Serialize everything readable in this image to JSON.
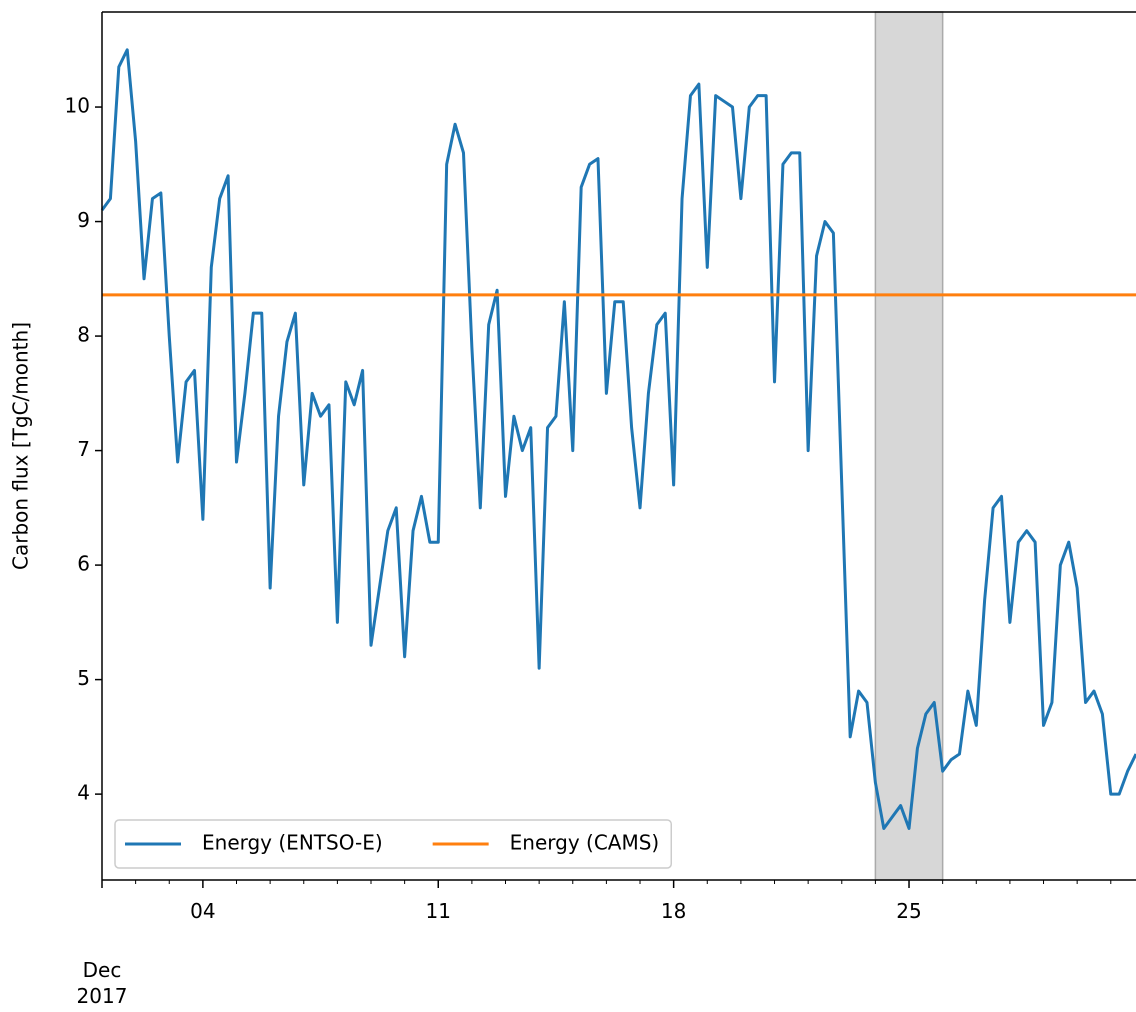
{
  "chart_data": {
    "type": "line",
    "ylabel": "Carbon flux [TgC/month]",
    "xlim": [
      1,
      31.75
    ],
    "ylim": [
      3.25,
      10.83
    ],
    "yticks": [
      4,
      5,
      6,
      7,
      8,
      9,
      10
    ],
    "xticks": [
      {
        "value": 1,
        "label": "Dec\n2017"
      },
      {
        "value": 4,
        "label": "04"
      },
      {
        "value": 11,
        "label": "11"
      },
      {
        "value": 18,
        "label": "18"
      },
      {
        "value": 25,
        "label": "25"
      }
    ],
    "xminorticks": [
      2,
      3,
      5,
      6,
      7,
      8,
      9,
      10,
      12,
      13,
      14,
      15,
      16,
      17,
      19,
      20,
      21,
      22,
      23,
      24,
      26,
      27,
      28,
      29,
      30,
      31
    ],
    "legend": "lower left",
    "spans": [
      {
        "start": 24,
        "end": 26,
        "color": "#d3d3d3"
      }
    ],
    "x": [
      1,
      1.25,
      1.5,
      1.75,
      2,
      2.25,
      2.5,
      2.75,
      3,
      3.25,
      3.5,
      3.75,
      4,
      4.25,
      4.5,
      4.75,
      5,
      5.25,
      5.5,
      5.75,
      6,
      6.25,
      6.5,
      6.75,
      7,
      7.25,
      7.5,
      7.75,
      8,
      8.25,
      8.5,
      8.75,
      9,
      9.25,
      9.5,
      9.75,
      10,
      10.25,
      10.5,
      10.75,
      11,
      11.25,
      11.5,
      11.75,
      12,
      12.25,
      12.5,
      12.75,
      13,
      13.25,
      13.5,
      13.75,
      14,
      14.25,
      14.5,
      14.75,
      15,
      15.25,
      15.5,
      15.75,
      16,
      16.25,
      16.5,
      16.75,
      17,
      17.25,
      17.5,
      17.75,
      18,
      18.25,
      18.5,
      18.75,
      19,
      19.25,
      19.5,
      19.75,
      20,
      20.25,
      20.5,
      20.75,
      21,
      21.25,
      21.5,
      21.75,
      22,
      22.25,
      22.5,
      22.75,
      23,
      23.25,
      23.5,
      23.75,
      24,
      24.25,
      24.5,
      24.75,
      25,
      25.25,
      25.5,
      25.75,
      26,
      26.25,
      26.5,
      26.75,
      27,
      27.25,
      27.5,
      27.75,
      28,
      28.25,
      28.5,
      28.75,
      29,
      29.25,
      29.5,
      29.75,
      30,
      30.25,
      30.5,
      30.75,
      31,
      31.25,
      31.5,
      31.75
    ],
    "series": [
      {
        "name": "Energy (ENTSO-E)",
        "color": "#1f77b4",
        "values": [
          9.1,
          9.2,
          10.35,
          10.5,
          9.7,
          8.5,
          9.2,
          9.25,
          8.0,
          6.9,
          7.6,
          7.7,
          6.4,
          8.6,
          9.2,
          9.4,
          6.9,
          7.5,
          8.2,
          8.2,
          5.8,
          7.3,
          7.95,
          8.2,
          6.7,
          7.5,
          7.3,
          7.4,
          5.5,
          7.6,
          7.4,
          7.7,
          5.3,
          5.8,
          6.3,
          6.5,
          5.2,
          6.3,
          6.6,
          6.2,
          6.2,
          9.5,
          9.85,
          9.6,
          7.9,
          6.5,
          8.1,
          8.4,
          6.6,
          7.3,
          7.0,
          7.2,
          5.1,
          7.2,
          7.3,
          8.3,
          7.0,
          9.3,
          9.5,
          9.55,
          7.5,
          8.3,
          8.3,
          7.2,
          6.5,
          7.5,
          8.1,
          8.2,
          6.7,
          9.2,
          10.1,
          10.2,
          8.6,
          10.1,
          10.05,
          10.0,
          9.2,
          10.0,
          10.1,
          10.1,
          7.6,
          9.5,
          9.6,
          9.6,
          7.0,
          8.7,
          9.0,
          8.9,
          6.7,
          4.5,
          4.9,
          4.8,
          4.1,
          3.7,
          3.8,
          3.9,
          3.7,
          4.4,
          4.7,
          4.8,
          4.2,
          4.3,
          4.35,
          4.9,
          4.6,
          5.7,
          6.5,
          6.6,
          5.5,
          6.2,
          6.3,
          6.2,
          4.6,
          4.8,
          6.0,
          6.2,
          5.8,
          4.8,
          4.9,
          4.7,
          4.0,
          4.0,
          4.2,
          4.35
        ]
      },
      {
        "name": "Energy (CAMS)",
        "color": "#ff7f0e",
        "type": "hline",
        "value": 8.36
      }
    ]
  }
}
